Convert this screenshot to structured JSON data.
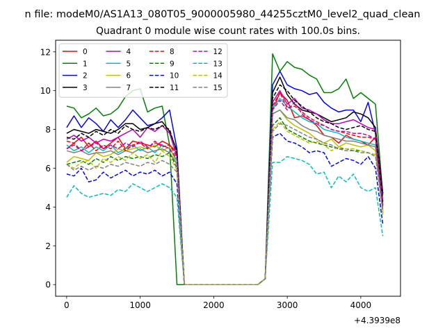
{
  "figure": {
    "suptitle": "n file: modeM0/AS1A13_080T05_9000005980_44255cztM0_level2_quad_clean",
    "axes_offset_label": "+4.3939e8"
  },
  "chart_data": {
    "type": "line",
    "title": "Quadrant 0 module wise count rates with 100.0s bins.",
    "xlabel": "",
    "ylabel": "",
    "xlim": [
      -150,
      4540
    ],
    "ylim": [
      -0.6,
      12.6
    ],
    "xticks": [
      0,
      1000,
      2000,
      3000,
      4000
    ],
    "yticks": [
      0,
      2,
      4,
      6,
      8,
      10,
      12
    ],
    "grid": false,
    "legend": {
      "position": "top-left",
      "columns": 4
    },
    "x": [
      0,
      100,
      200,
      300,
      400,
      500,
      600,
      700,
      800,
      900,
      1000,
      1100,
      1200,
      1300,
      1400,
      1500,
      1600,
      1700,
      1800,
      1900,
      2000,
      2100,
      2200,
      2300,
      2400,
      2500,
      2600,
      2700,
      2800,
      2900,
      3000,
      3100,
      3200,
      3300,
      3400,
      3500,
      3600,
      3700,
      3800,
      3900,
      4000,
      4100,
      4200,
      4300
    ],
    "series": [
      {
        "name": "0",
        "color": "#ff0000",
        "dash": "solid",
        "values": [
          7.0,
          7.3,
          7.6,
          7.1,
          7.4,
          7.0,
          7.3,
          7.6,
          7.0,
          7.4,
          7.3,
          7.2,
          7.1,
          7.4,
          7.2,
          6.8,
          0,
          0,
          0,
          0,
          0,
          0,
          0,
          0,
          0,
          0,
          0,
          0.3,
          9.0,
          9.9,
          9.5,
          8.6,
          8.7,
          8.5,
          8.2,
          7.7,
          7.6,
          7.3,
          7.7,
          7.5,
          7.4,
          7.2,
          7.6,
          4.1
        ]
      },
      {
        "name": "1",
        "color": "#008000",
        "dash": "solid",
        "values": [
          9.2,
          9.1,
          8.6,
          8.8,
          9.1,
          8.7,
          8.8,
          9.1,
          9.7,
          10.0,
          10.1,
          8.9,
          9.1,
          9.2,
          7.2,
          0,
          0,
          0,
          0,
          0,
          0,
          0,
          0,
          0,
          0,
          0,
          0,
          0.3,
          11.9,
          11.0,
          11.5,
          11.2,
          11.1,
          10.8,
          10.6,
          9.9,
          9.9,
          10.1,
          10.6,
          9.6,
          9.9,
          9.6,
          9.3,
          4.6
        ]
      },
      {
        "name": "2",
        "color": "#0000ff",
        "dash": "solid",
        "values": [
          8.1,
          8.7,
          8.1,
          8.6,
          8.3,
          7.9,
          8.5,
          8.1,
          8.5,
          9.0,
          8.6,
          8.2,
          8.3,
          8.6,
          9.0,
          7.0,
          0,
          0,
          0,
          0,
          0,
          0,
          0,
          0,
          0,
          0,
          0,
          0.3,
          10.3,
          11.0,
          10.3,
          10.1,
          10.0,
          9.8,
          9.9,
          9.4,
          9.1,
          8.9,
          9.0,
          9.0,
          8.4,
          9.4,
          7.8,
          4.7
        ]
      },
      {
        "name": "3",
        "color": "#000000",
        "dash": "solid",
        "values": [
          7.8,
          8.0,
          7.9,
          7.8,
          8.0,
          7.9,
          7.8,
          8.0,
          8.3,
          8.3,
          8.0,
          8.1,
          8.3,
          8.4,
          7.9,
          6.9,
          0,
          0,
          0,
          0,
          0,
          0,
          0,
          0,
          0,
          0,
          0,
          0.3,
          9.9,
          10.7,
          9.8,
          9.3,
          9.0,
          8.9,
          8.8,
          8.6,
          8.4,
          8.5,
          8.6,
          8.9,
          8.8,
          8.6,
          8.1,
          4.7
        ]
      },
      {
        "name": "4",
        "color": "#bf00bf",
        "dash": "solid",
        "values": [
          7.5,
          7.7,
          7.4,
          7.6,
          7.3,
          7.5,
          7.4,
          7.6,
          7.8,
          8.0,
          7.6,
          8.1,
          7.9,
          8.2,
          7.8,
          6.6,
          0,
          0,
          0,
          0,
          0,
          0,
          0,
          0,
          0,
          0,
          0,
          0.3,
          9.4,
          10.0,
          9.3,
          9.6,
          9.1,
          9.0,
          8.8,
          8.5,
          8.3,
          8.3,
          8.4,
          8.5,
          8.3,
          8.1,
          8.0,
          4.3
        ]
      },
      {
        "name": "5",
        "color": "#00bfbf",
        "dash": "solid",
        "values": [
          7.2,
          6.9,
          7.1,
          6.8,
          7.1,
          6.9,
          7.2,
          6.8,
          7.0,
          7.2,
          6.9,
          7.1,
          6.8,
          7.2,
          7.0,
          6.4,
          0,
          0,
          0,
          0,
          0,
          0,
          0,
          0,
          0,
          0,
          0,
          0.3,
          9.1,
          9.6,
          9.2,
          8.9,
          8.6,
          8.4,
          8.3,
          8.0,
          7.9,
          7.8,
          7.6,
          7.5,
          7.4,
          7.3,
          7.2,
          4.0
        ]
      },
      {
        "name": "6",
        "color": "#bfbf00",
        "dash": "solid",
        "values": [
          6.3,
          6.6,
          6.5,
          6.4,
          6.8,
          6.6,
          6.7,
          7.0,
          6.9,
          7.0,
          7.1,
          7.0,
          7.2,
          6.9,
          7.1,
          6.2,
          0,
          0,
          0,
          0,
          0,
          0,
          0,
          0,
          0,
          0,
          0,
          0.3,
          8.8,
          9.0,
          8.5,
          8.2,
          8.0,
          7.8,
          7.5,
          7.3,
          7.5,
          7.1,
          7.3,
          7.2,
          7.1,
          7.2,
          6.9,
          3.8
        ]
      },
      {
        "name": "7",
        "color": "#808080",
        "dash": "solid",
        "values": [
          6.9,
          6.8,
          6.9,
          6.7,
          6.8,
          6.8,
          6.9,
          6.7,
          6.9,
          6.8,
          7.0,
          6.8,
          6.9,
          7.0,
          6.8,
          6.2,
          0,
          0,
          0,
          0,
          0,
          0,
          0,
          0,
          0,
          0,
          0,
          0.3,
          8.8,
          9.0,
          8.6,
          8.5,
          8.2,
          8.0,
          7.9,
          7.7,
          7.6,
          7.5,
          7.4,
          7.4,
          7.3,
          7.2,
          7.1,
          3.9
        ]
      },
      {
        "name": "8",
        "color": "#ff0000",
        "dash": "dashed",
        "values": [
          7.4,
          7.3,
          6.9,
          7.3,
          6.9,
          7.2,
          7.0,
          7.4,
          6.9,
          7.2,
          7.3,
          7.0,
          7.4,
          7.1,
          7.2,
          6.6,
          0,
          0,
          0,
          0,
          0,
          0,
          0,
          0,
          0,
          0,
          0,
          0.3,
          9.2,
          9.9,
          9.1,
          9.2,
          8.9,
          8.6,
          8.4,
          8.2,
          8.0,
          7.9,
          7.8,
          7.7,
          7.6,
          7.6,
          7.5,
          4.0
        ]
      },
      {
        "name": "9",
        "color": "#008000",
        "dash": "dashed",
        "values": [
          6.2,
          6.3,
          6.4,
          6.2,
          6.5,
          6.3,
          6.6,
          6.4,
          6.6,
          6.5,
          6.6,
          6.5,
          6.7,
          6.6,
          6.8,
          6.0,
          0,
          0,
          0,
          0,
          0,
          0,
          0,
          0,
          0,
          0,
          0,
          0.3,
          8.2,
          8.6,
          8.0,
          7.8,
          7.6,
          7.4,
          7.3,
          7.2,
          7.1,
          7.0,
          7.0,
          6.9,
          6.9,
          6.8,
          6.7,
          3.7
        ]
      },
      {
        "name": "10",
        "color": "#0000ff",
        "dash": "dashed",
        "values": [
          5.7,
          5.6,
          6.0,
          5.3,
          5.4,
          5.8,
          5.5,
          5.7,
          5.9,
          5.6,
          5.8,
          5.7,
          5.9,
          5.6,
          5.8,
          5.2,
          0,
          0,
          0,
          0,
          0,
          0,
          0,
          0,
          0,
          0,
          0,
          0.3,
          7.6,
          7.8,
          7.4,
          7.3,
          7.1,
          6.8,
          6.9,
          6.8,
          6.1,
          6.3,
          6.5,
          6.4,
          6.2,
          6.6,
          6.0,
          3.1
        ]
      },
      {
        "name": "11",
        "color": "#000000",
        "dash": "dashed",
        "values": [
          7.6,
          7.5,
          7.8,
          7.6,
          7.9,
          7.7,
          8.0,
          7.8,
          8.2,
          8.0,
          7.9,
          8.1,
          8.0,
          8.2,
          8.0,
          6.8,
          0,
          0,
          0,
          0,
          0,
          0,
          0,
          0,
          0,
          0,
          0,
          0.3,
          9.6,
          10.3,
          10.0,
          9.5,
          9.2,
          8.9,
          8.6,
          8.4,
          8.3,
          8.1,
          8.0,
          8.1,
          8.2,
          8.0,
          7.9,
          4.2
        ]
      },
      {
        "name": "12",
        "color": "#bf00bf",
        "dash": "dashed",
        "values": [
          7.0,
          7.2,
          6.9,
          7.1,
          7.3,
          7.0,
          7.2,
          7.0,
          7.3,
          7.1,
          7.4,
          7.1,
          7.3,
          7.2,
          7.0,
          6.5,
          0,
          0,
          0,
          0,
          0,
          0,
          0,
          0,
          0,
          0,
          0,
          0.3,
          9.0,
          9.5,
          9.0,
          9.4,
          8.8,
          8.5,
          8.3,
          8.2,
          8.0,
          7.9,
          7.9,
          7.8,
          7.8,
          7.7,
          7.5,
          4.1
        ]
      },
      {
        "name": "13",
        "color": "#00bfbf",
        "dash": "dashed",
        "values": [
          4.5,
          5.1,
          4.7,
          4.5,
          4.6,
          4.7,
          4.6,
          4.9,
          4.8,
          5.2,
          5.0,
          4.8,
          5.0,
          5.2,
          5.0,
          4.5,
          0,
          0,
          0,
          0,
          0,
          0,
          0,
          0,
          0,
          0,
          0,
          0.3,
          6.3,
          6.3,
          6.6,
          6.5,
          6.4,
          6.2,
          5.7,
          5.8,
          5.0,
          5.6,
          5.3,
          5.7,
          5.0,
          4.8,
          5.0,
          2.5
        ]
      },
      {
        "name": "14",
        "color": "#bfbf00",
        "dash": "dashed",
        "values": [
          6.2,
          6.0,
          6.3,
          6.4,
          6.0,
          6.5,
          6.3,
          6.6,
          6.4,
          6.8,
          6.5,
          6.7,
          6.3,
          6.9,
          6.6,
          5.9,
          0,
          0,
          0,
          0,
          0,
          0,
          0,
          0,
          0,
          0,
          0,
          0.3,
          8.0,
          8.4,
          7.9,
          7.7,
          7.5,
          7.3,
          7.4,
          7.2,
          6.9,
          7.1,
          7.0,
          7.0,
          6.9,
          6.8,
          6.7,
          3.6
        ]
      },
      {
        "name": "15",
        "color": "#808080",
        "dash": "dashed",
        "values": [
          6.2,
          5.9,
          6.1,
          5.9,
          6.1,
          6.0,
          6.2,
          6.1,
          6.3,
          6.2,
          6.1,
          6.3,
          6.2,
          6.4,
          6.2,
          5.8,
          0,
          0,
          0,
          0,
          0,
          0,
          0,
          0,
          0,
          0,
          0,
          0.3,
          7.9,
          8.3,
          8.2,
          8.0,
          7.8,
          7.6,
          7.5,
          7.3,
          7.2,
          7.0,
          6.9,
          6.9,
          6.8,
          6.8,
          6.6,
          3.8
        ]
      }
    ]
  }
}
